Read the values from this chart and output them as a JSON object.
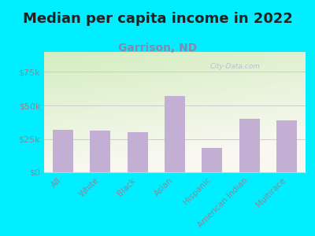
{
  "title": "Median per capita income in 2022",
  "subtitle": "Garrison, ND",
  "categories": [
    "All",
    "White",
    "Black",
    "Asian",
    "Hispanic",
    "American Indian",
    "Multirace"
  ],
  "values": [
    32000,
    31000,
    30000,
    57000,
    18000,
    40000,
    39000
  ],
  "bar_color": "#c4afd4",
  "title_fontsize": 13,
  "title_color": "#222222",
  "subtitle_fontsize": 10,
  "subtitle_color": "#8888aa",
  "tick_label_color": "#888899",
  "background_outer": "#00eeff",
  "background_inner_top_left": "#d4edc0",
  "background_inner_bottom_right": "#f8f8f0",
  "ylim": [
    0,
    90000
  ],
  "yticks": [
    0,
    25000,
    50000,
    75000
  ],
  "ytick_labels": [
    "$0",
    "$25k",
    "$50k",
    "$75k"
  ],
  "watermark": "City-Data.com",
  "grid_color": "#cccccc"
}
